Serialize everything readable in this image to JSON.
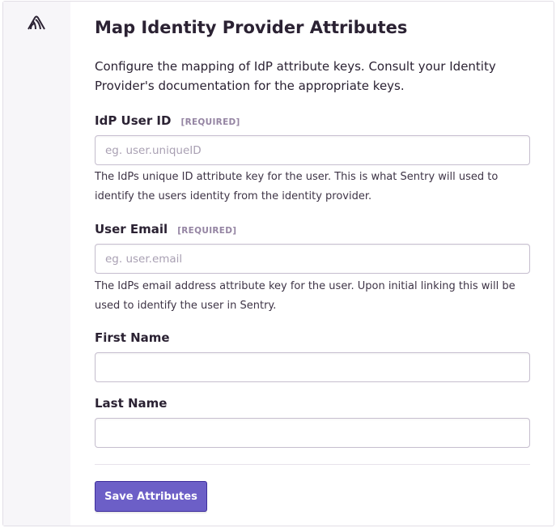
{
  "title": "Map Identity Provider Attributes",
  "description": "Configure the mapping of IdP attribute keys. Consult your Identity Provider's documentation for the appropriate keys.",
  "fields": [
    {
      "label": "IdP User ID",
      "badge": "[REQUIRED]",
      "placeholder": "eg. user.uniqueID",
      "value": "",
      "help": "The IdPs unique ID attribute key for the user. This is what Sentry will used to identify the users identity from the identity provider."
    },
    {
      "label": "User Email",
      "badge": "[REQUIRED]",
      "placeholder": "eg. user.email",
      "value": "",
      "help": "The IdPs email address attribute key for the user. Upon initial linking this will be used to identify the user in Sentry."
    },
    {
      "label": "First Name",
      "placeholder": "",
      "value": ""
    },
    {
      "label": "Last Name",
      "placeholder": "",
      "value": ""
    }
  ],
  "submit_label": "Save Attributes",
  "logo_icon": "sentry-logo-icon",
  "colors": {
    "accent": "#6c5fc7",
    "text": "#2b2233",
    "sidebar": "#f7f6f9"
  }
}
